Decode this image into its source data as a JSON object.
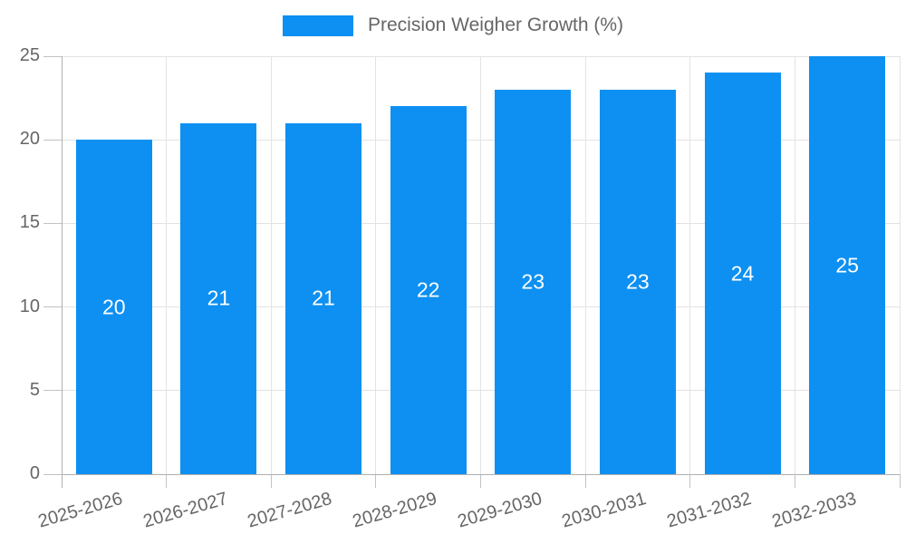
{
  "legend": {
    "label": "Precision Weigher Growth (%)"
  },
  "colors": {
    "bar": "#0d90f2",
    "bar_label": "#ffffff",
    "text": "#666666",
    "grid": "#e3e3e3",
    "axis_line": "#b0b0b0",
    "tick": "#c2c2c2",
    "background": "#ffffff"
  },
  "chart_data": {
    "type": "bar",
    "title": "",
    "xlabel": "",
    "ylabel": "",
    "categories": [
      "2025-2026",
      "2026-2027",
      "2027-2028",
      "2028-2029",
      "2029-2030",
      "2030-2031",
      "2031-2032",
      "2032-2033"
    ],
    "series": [
      {
        "name": "Precision Weigher Growth (%)",
        "values": [
          20,
          21,
          21,
          22,
          23,
          23,
          24,
          25
        ]
      }
    ],
    "bar_value_labels": [
      20,
      21,
      21,
      22,
      23,
      23,
      24,
      25
    ],
    "ylim": [
      0,
      25
    ],
    "yticks": [
      0,
      5,
      10,
      15,
      20,
      25
    ],
    "grid": true,
    "legend_position": "top",
    "x_tick_rotation_deg": -16
  }
}
